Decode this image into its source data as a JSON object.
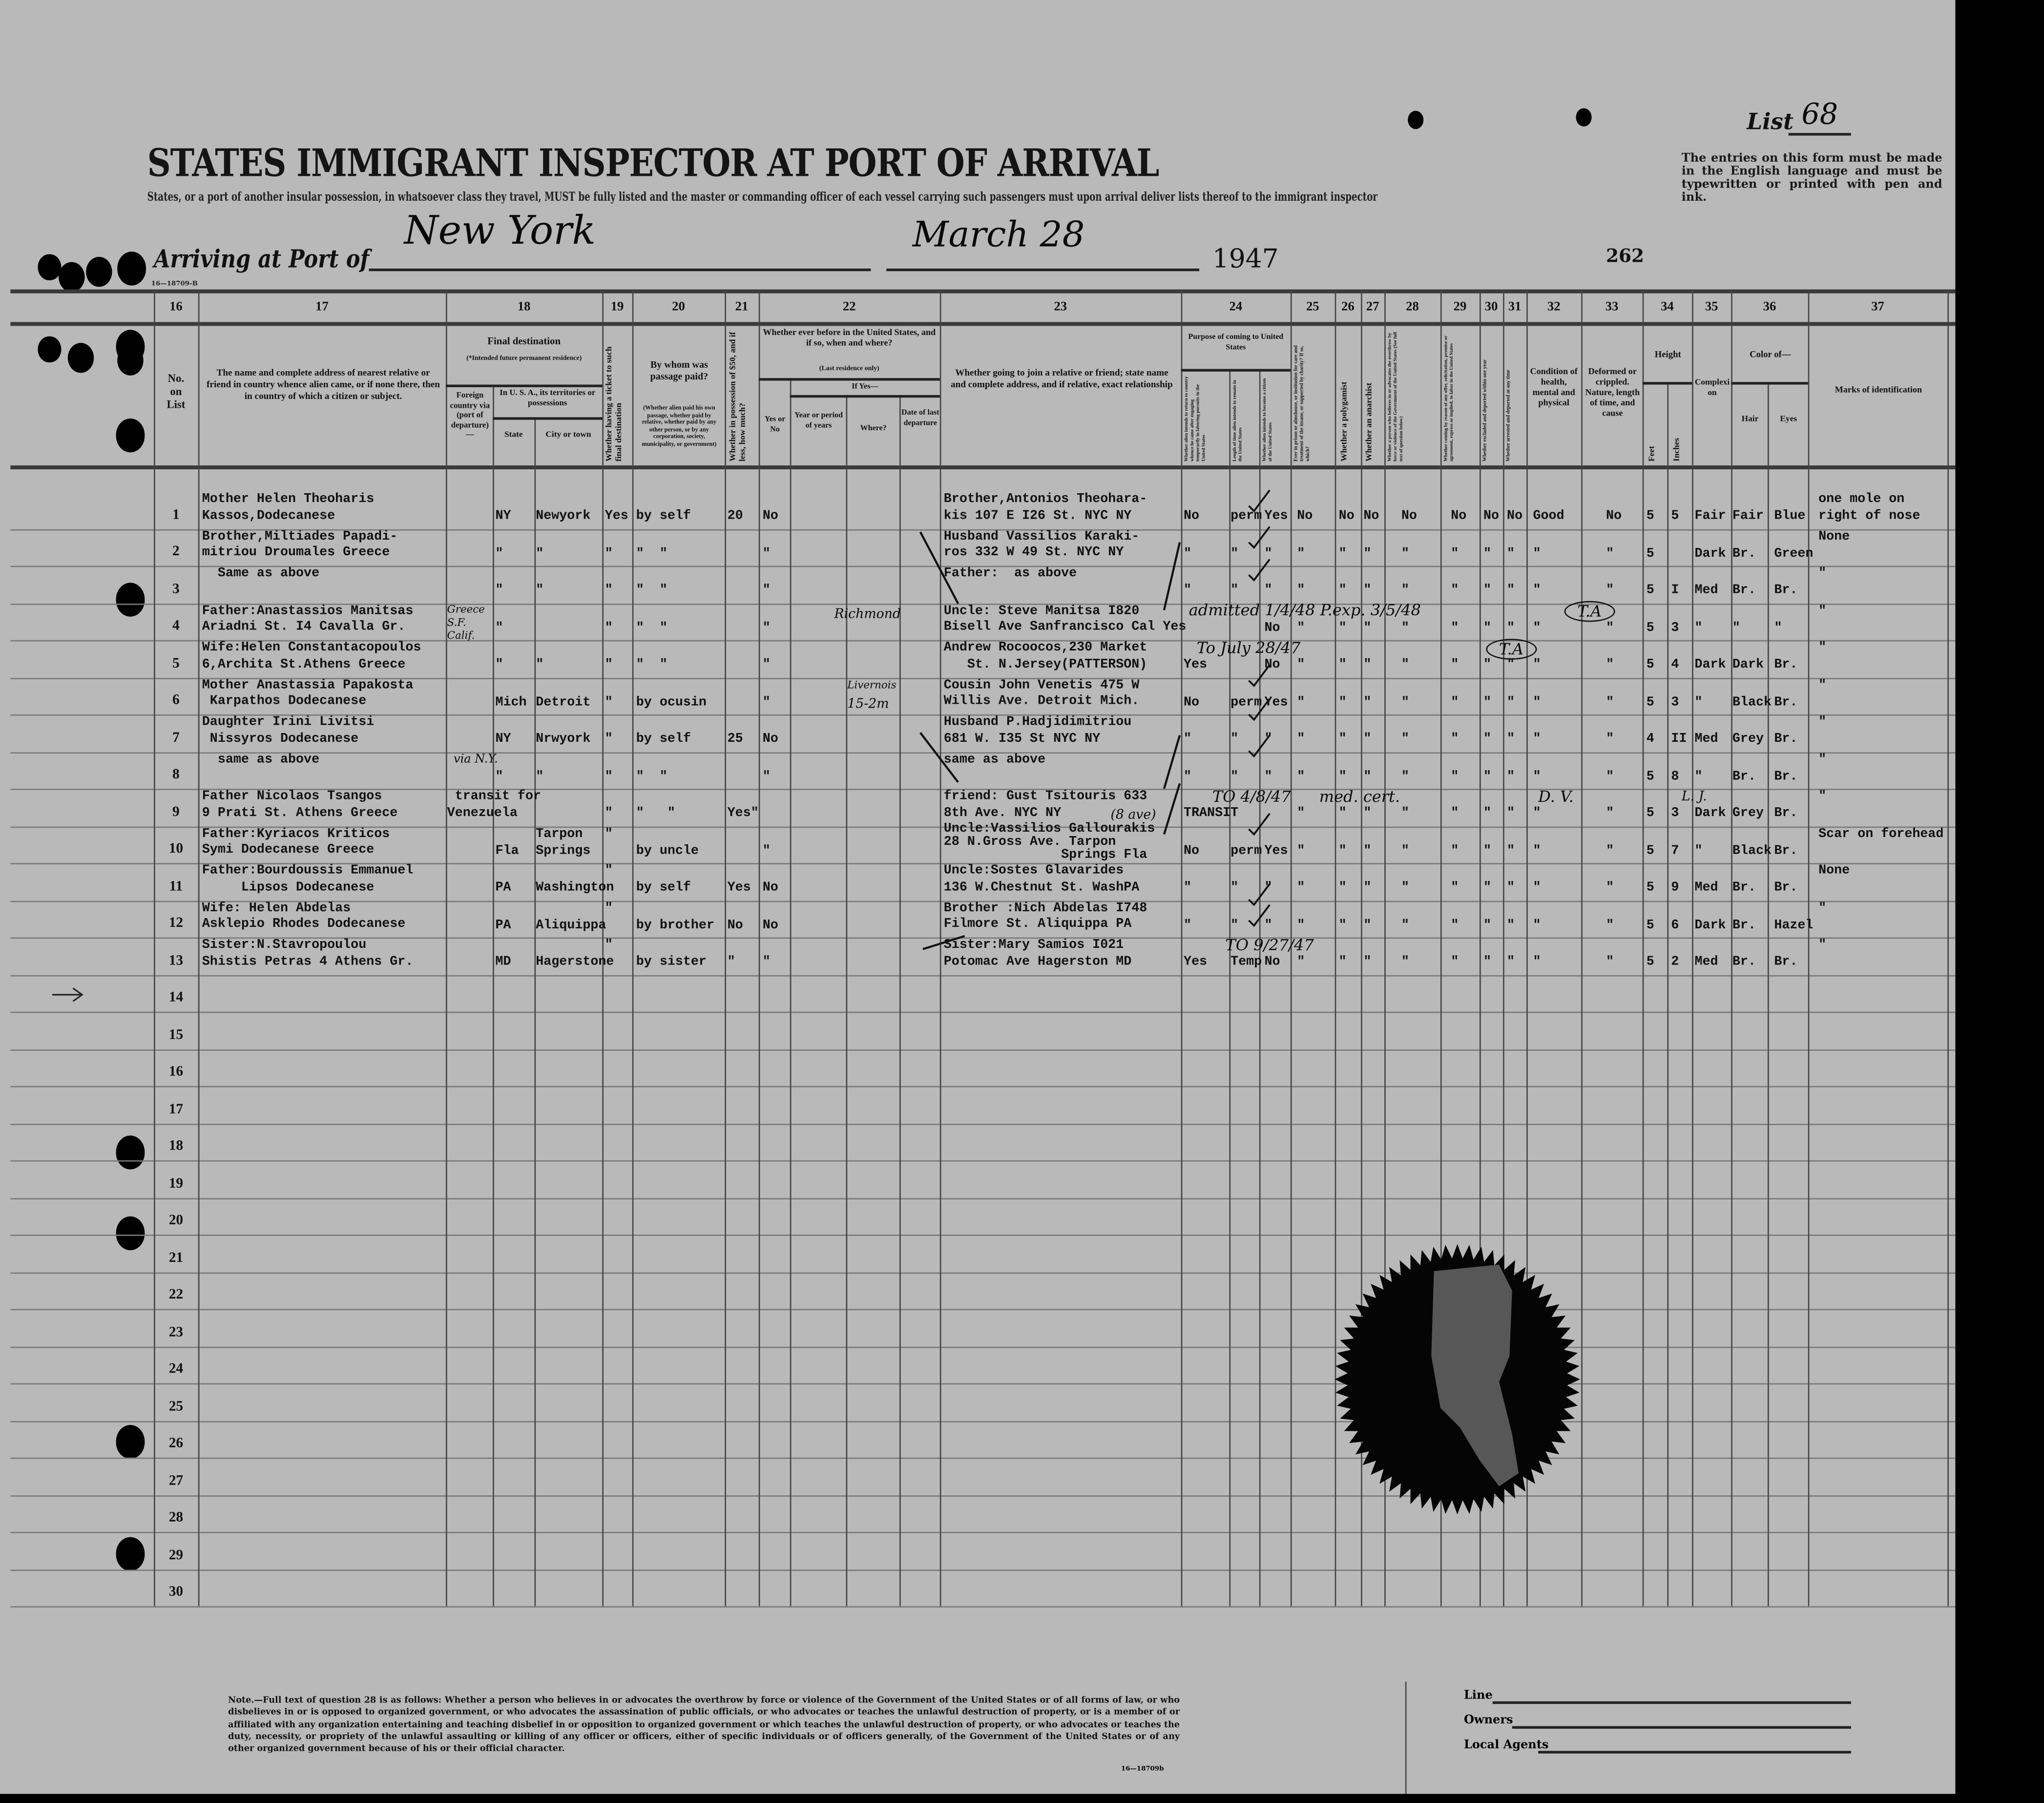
{
  "header": {
    "form_code": "16—18709-B",
    "list_label": "List",
    "list_number": "68",
    "title": "STATES IMMIGRANT INSPECTOR AT PORT OF ARRIVAL",
    "subtitle": "States, or a port of another insular possession, in whatsoever class they travel, MUST be fully listed and the master or commanding officer of each vessel carrying such passengers must upon arrival deliver lists thereof to the immigrant inspector",
    "notice": "The entries on this form must be made in the English language and must be typewritten or printed with pen and ink.",
    "arriving_label": "Arriving at Port of",
    "port": "New York",
    "date": "March 28",
    "year": "1947",
    "sheet_number": "262"
  },
  "columns": {
    "numbers": [
      "16",
      "17",
      "18",
      "19",
      "20",
      "21",
      "22",
      "23",
      "24",
      "25",
      "26",
      "27",
      "28",
      "29",
      "30",
      "31",
      "32",
      "33",
      "34",
      "35",
      "36",
      "37"
    ],
    "no_on_list": "No.\non\nList",
    "relative": "The name and complete address of nearest relative or friend in country whence alien came, or if none there, then in country of which a citizen or subject.",
    "final_destination": "Final destination",
    "final_destination_note": "(*Intended future permanent residence)",
    "foreign_country": "Foreign country via (port of departure)—",
    "in_usa": "In U. S. A., its territories or possessions",
    "state": "State",
    "city": "City or town",
    "ticket": "Whether having a ticket to such final destination",
    "paid_by": "By whom was passage paid?",
    "paid_by_note": "(Whether alien paid his own passage, whether paid by relative, whether paid by any other person, or by any corporation, society, municipality, or government)",
    "money": "Whether in possession of $50, and if less, how much?",
    "before": "Whether ever before in the United States, and if so, when and where?",
    "before_note": "(Last residence only)",
    "if_yes": "If Yes—",
    "yes_no": "Yes or No",
    "year_period": "Year or period of years",
    "where": "Where?",
    "date_departure": "Date of last departure",
    "join": "Whether going to join a relative or friend; state name and complete address, and if relative, exact relationship",
    "purpose": "Purpose of coming to United States",
    "purpose_a": "Whether alien intends to return to country whence he came after engaging temporarily in laboring pursuits in the United States",
    "purpose_b": "Length of time alien intends to remain in the United States",
    "purpose_c": "Whether alien intends to become a citizen of the United States",
    "c25": "Ever in prison or almshouse, or institution for care and treatment of the insane, or supported by charity? If so, which?",
    "c26": "Whether a polygamist",
    "c27": "Whether an anarchist",
    "c28": "Whether a person who believes in or advocates the overthrow by force or violence of the Government of the United States (See full text of question below)",
    "c29": "Whether coming by reason of any offer, solicitation, promise or agreement, express or implied, to labor in the United States",
    "c30": "Whether excluded and deported within one year",
    "c31": "Whether arrested and deported at any time",
    "c32": "Condition of health, mental and physical",
    "c33": "Deformed or crippled. Nature, length of time, and cause",
    "height": "Height",
    "feet": "Feet",
    "inches": "Inches",
    "complexion": "Complexion",
    "color_of": "Color of—",
    "hair": "Hair",
    "eyes": "Eyes",
    "marks": "Marks of identification"
  },
  "rows": [
    {
      "num": "1",
      "rel": "Mother Helen Theoharis\nKassos,Dodecanese",
      "foreign": "",
      "state": "NY",
      "city": "Newyork",
      "ticket": "Yes",
      "paid": "by self",
      "money": "20",
      "before": "No",
      "join": "Brother,Antonios Theohara-\nkis 107 E I26 St. NYC NY",
      "p_a": "No",
      "p_b": "perm",
      "p_c": "Yes",
      "c25": "No",
      "c26": "No",
      "c27": "No",
      "c28": "No",
      "c29": "No",
      "c30": "No",
      "c31": "No",
      "c32": "Good",
      "c33": "No",
      "feet": "5",
      "inches": "5",
      "complexion": "Fair",
      "hair": "Fair",
      "eyes": "Blue",
      "marks": "one mole on\nright of nose"
    },
    {
      "num": "2",
      "rel": "Brother,Miltiades Papadi-\nmitriou Droumales Greece",
      "foreign": "",
      "state": "\"",
      "city": "\"",
      "ticket": "\"",
      "paid": "\"  \"",
      "money": "",
      "before": "\"",
      "join": "Husband Vassilios Karaki-\nros 332 W 49 St. NYC NY",
      "p_a": "\"",
      "p_b": "\"",
      "p_c": "\"",
      "c25": "\"",
      "c26": "\"",
      "c27": "\"",
      "c28": "\"",
      "c29": "\"",
      "c30": "\"",
      "c31": "\"",
      "c32": "\"",
      "c33": "\"",
      "feet": "5",
      "inches": "",
      "complexion": "Dark",
      "hair": "Br.",
      "eyes": "Green",
      "marks": "None"
    },
    {
      "num": "3",
      "rel": "  Same as above",
      "foreign": "",
      "state": "\"",
      "city": "\"",
      "ticket": "\"",
      "paid": "\"  \"",
      "money": "",
      "before": "\"",
      "join": "Father:  as above",
      "p_a": "\"",
      "p_b": "\"",
      "p_c": "\"",
      "c25": "\"",
      "c26": "\"",
      "c27": "\"",
      "c28": "\"",
      "c29": "\"",
      "c30": "\"",
      "c31": "\"",
      "c32": "\"",
      "c33": "\"",
      "feet": "5",
      "inches": "I",
      "complexion": "Med",
      "hair": "Br.",
      "eyes": "Br.",
      "marks": "\""
    },
    {
      "num": "4",
      "rel": "Father:Anastassios Manitsas\nAriadni St. I4 Cavalla Gr.",
      "foreign": "",
      "state": "\"",
      "city": "",
      "ticket": "\"",
      "paid": "\"  \"",
      "money": "",
      "before": "\"",
      "join": "Uncle: Steve Manitsa I820\nBisell Ave Sanfrancisco Cal Yes",
      "p_a": "",
      "p_b": "",
      "p_c": "No",
      "c25": "\"",
      "c26": "\"",
      "c27": "\"",
      "c28": "\"",
      "c29": "\"",
      "c30": "\"",
      "c31": "\"",
      "c32": "\"",
      "c33": "\"",
      "feet": "5",
      "inches": "3",
      "complexion": "\"",
      "hair": "\"",
      "eyes": "\"",
      "marks": "\""
    },
    {
      "num": "5",
      "rel": "Wife:Helen Constantacopoulos\n6,Archita St.Athens Greece",
      "foreign": "",
      "state": "\"",
      "city": "\"",
      "ticket": "\"",
      "paid": "\"  \"",
      "money": "",
      "before": "\"",
      "join": "Andrew Rocoocos,230 Market\n   St. N.Jersey(PATTERSON)",
      "p_a": "Yes",
      "p_b": "",
      "p_c": "No",
      "c25": "\"",
      "c26": "\"",
      "c27": "\"",
      "c28": "\"",
      "c29": "\"",
      "c30": "\"",
      "c31": "\"",
      "c32": "\"",
      "c33": "\"",
      "feet": "5",
      "inches": "4",
      "complexion": "Dark",
      "hair": "Dark",
      "eyes": "Br.",
      "marks": "\""
    },
    {
      "num": "6",
      "rel": "Mother Anastassia Papakosta\n Karpathos Dodecanese",
      "foreign": "",
      "state": "Mich",
      "city": "Detroit",
      "ticket": "\"",
      "paid": "by ocusin",
      "money": "",
      "before": "\"",
      "join": "Cousin John Venetis 475 W\nWillis Ave. Detroit Mich.",
      "p_a": "No",
      "p_b": "perm",
      "p_c": "Yes",
      "c25": "\"",
      "c26": "\"",
      "c27": "\"",
      "c28": "\"",
      "c29": "\"",
      "c30": "\"",
      "c31": "\"",
      "c32": "\"",
      "c33": "\"",
      "feet": "5",
      "inches": "3",
      "complexion": "\"",
      "hair": "Black",
      "eyes": "Br.",
      "marks": "\""
    },
    {
      "num": "7",
      "rel": "Daughter Irini Livitsi\n Nissyros Dodecanese",
      "foreign": "",
      "state": "NY",
      "city": "Nrwyork",
      "ticket": "\"",
      "paid": "by self",
      "money": "25",
      "before": "No",
      "join": "Husband P.Hadjidimitriou\n681 W. I35 St NYC NY",
      "p_a": "\"",
      "p_b": "\"",
      "p_c": "\"",
      "c25": "\"",
      "c26": "\"",
      "c27": "\"",
      "c28": "\"",
      "c29": "\"",
      "c30": "\"",
      "c31": "\"",
      "c32": "\"",
      "c33": "\"",
      "feet": "4",
      "inches": "II",
      "complexion": "Med",
      "hair": "Grey",
      "eyes": "Br.",
      "marks": "\""
    },
    {
      "num": "8",
      "rel": "  same as above",
      "foreign": "",
      "state": "\"",
      "city": "\"",
      "ticket": "\"",
      "paid": "\"  \"",
      "money": "",
      "before": "\"",
      "join": "same as above",
      "p_a": "\"",
      "p_b": "\"",
      "p_c": "\"",
      "c25": "\"",
      "c26": "\"",
      "c27": "\"",
      "c28": "\"",
      "c29": "\"",
      "c30": "\"",
      "c31": "\"",
      "c32": "\"",
      "c33": "\"",
      "feet": "5",
      "inches": "8",
      "complexion": "\"",
      "hair": "Br.",
      "eyes": "Br.",
      "marks": "\""
    },
    {
      "num": "9",
      "rel": "Father Nicolaos Tsangos\n9 Prati St. Athens Greece",
      "foreign": " transit for\nVenezuela",
      "state": "",
      "city": "",
      "ticket": "\"",
      "paid": "\"   \"",
      "money": "Yes\"",
      "before": "",
      "join": "friend: Gust Tsitouris 633\n8th Ave. NYC NY",
      "p_a": "TRANSIT",
      "p_b": "",
      "p_c": "",
      "c25": "\"",
      "c26": "\"",
      "c27": "\"",
      "c28": "\"",
      "c29": "\"",
      "c30": "\"",
      "c31": "\"",
      "c32": "\"",
      "c33": "\"",
      "feet": "5",
      "inches": "3",
      "complexion": "Dark",
      "hair": "Grey",
      "eyes": "Br.",
      "marks": "\""
    },
    {
      "num": "10",
      "rel": "Father:Kyriacos Kriticos\nSymi Dodecanese Greece",
      "foreign": "",
      "state": "Fla",
      "city": "Tarpon\nSprings",
      "ticket": "\"",
      "paid": "by uncle",
      "money": "",
      "before": "\"",
      "join": "Uncle:Vassilios Gallourakis\n28 N.Gross Ave. Tarpon\n               Springs Fla",
      "p_a": "No",
      "p_b": "perm",
      "p_c": "Yes",
      "c25": "\"",
      "c26": "\"",
      "c27": "\"",
      "c28": "\"",
      "c29": "\"",
      "c30": "\"",
      "c31": "\"",
      "c32": "\"",
      "c33": "\"",
      "feet": "5",
      "inches": "7",
      "complexion": "\"",
      "hair": "Black",
      "eyes": "Br.",
      "marks": "Scar on forehead"
    },
    {
      "num": "11",
      "rel": "Father:Bourdoussis Emmanuel\n     Lipsos Dodecanese",
      "foreign": "",
      "state": "PA",
      "city": "Washington",
      "ticket": "\"",
      "paid": "by self",
      "money": "Yes",
      "before": "No",
      "join": "Uncle:Sostes Glavarides\n136 W.Chestnut St. WashPA",
      "p_a": "\"",
      "p_b": "\"",
      "p_c": "\"",
      "c25": "\"",
      "c26": "\"",
      "c27": "\"",
      "c28": "\"",
      "c29": "\"",
      "c30": "\"",
      "c31": "\"",
      "c32": "\"",
      "c33": "\"",
      "feet": "5",
      "inches": "9",
      "complexion": "Med",
      "hair": "Br.",
      "eyes": "Br.",
      "marks": "None"
    },
    {
      "num": "12",
      "rel": "Wife: Helen Abdelas\nAsklepio Rhodes Dodecanese",
      "foreign": "",
      "state": "PA",
      "city": "Aliquippa",
      "ticket": "\"",
      "paid": "by brother",
      "money": "No",
      "before": "No",
      "join": "Brother :Nich Abdelas I748\nFilmore St. Aliquippa PA",
      "p_a": "\"",
      "p_b": "\"",
      "p_c": "\"",
      "c25": "\"",
      "c26": "\"",
      "c27": "\"",
      "c28": "\"",
      "c29": "\"",
      "c30": "\"",
      "c31": "\"",
      "c32": "\"",
      "c33": "\"",
      "feet": "5",
      "inches": "6",
      "complexion": "Dark",
      "hair": "Br.",
      "eyes": "Hazel",
      "marks": "\""
    },
    {
      "num": "13",
      "rel": "Sister:N.Stavropoulou\nShistis Petras 4 Athens Gr.",
      "foreign": "",
      "state": "MD",
      "city": "Hagerstone",
      "ticket": "\"",
      "paid": "by sister",
      "money": "\"",
      "before": "\"",
      "join": "Sister:Mary Samios I021\nPotomac Ave Hagerston MD",
      "p_a": "Yes",
      "p_b": "Temp",
      "p_c": "No",
      "c25": "\"",
      "c26": "\"",
      "c27": "\"",
      "c28": "\"",
      "c29": "\"",
      "c30": "\"",
      "c31": "\"",
      "c32": "\"",
      "c33": "\"",
      "feet": "5",
      "inches": "2",
      "complexion": "Med",
      "hair": "Br.",
      "eyes": "Br.",
      "marks": "\""
    },
    {
      "num": "14"
    },
    {
      "num": "15"
    },
    {
      "num": "16"
    },
    {
      "num": "17"
    },
    {
      "num": "18"
    },
    {
      "num": "19"
    },
    {
      "num": "20"
    },
    {
      "num": "21"
    },
    {
      "num": "22"
    },
    {
      "num": "23"
    },
    {
      "num": "24"
    },
    {
      "num": "25"
    },
    {
      "num": "26"
    },
    {
      "num": "27"
    },
    {
      "num": "28"
    },
    {
      "num": "29"
    },
    {
      "num": "30"
    }
  ],
  "annotations": [
    {
      "text": "Greece\nS.F. Calif.",
      "row": "4"
    },
    {
      "text": "Richmond",
      "row": "4"
    },
    {
      "text": "admitted 1/4/48  P.exp. 3/5/48",
      "row": "4"
    },
    {
      "text": "T.A",
      "row": "4"
    },
    {
      "text": "To July 28/47",
      "row": "5"
    },
    {
      "text": "T.A",
      "row": "5"
    },
    {
      "text": "15-2m",
      "row": "6"
    },
    {
      "text": "Livernois",
      "row": "6"
    },
    {
      "text": "via N.Y.",
      "row": "9"
    },
    {
      "text": "TO 4/8/47",
      "row": "9"
    },
    {
      "text": "med. cert.",
      "row": "9"
    },
    {
      "text": "D. V.",
      "row": "9"
    },
    {
      "text": "L. J.",
      "row": "9"
    },
    {
      "text": "(8 ave)",
      "row": "9"
    },
    {
      "text": "TO 9/27/47",
      "row": "13"
    }
  ],
  "footer": {
    "note": "Note.—Full text of question 28 is as follows: Whether a person who believes in or advocates the overthrow by force or violence of the Government of the United States or of all forms of law, or who disbelieves in or is opposed to organized government, or who advocates the assassination of public officials, or who advocates or teaches the unlawful destruction of property, or is a member of or affiliated with any organization entertaining and teaching disbelief in or opposition to organized government or which teaches the unlawful destruction of property, or who advocates or teaches the duty, necessity, or propriety of the unlawful assaulting or killing of any officer or officers, either of specific individuals or of officers generally, of the Government of the United States or of any other organized government because of his or their official character.",
    "form_code": "16—18709b",
    "line_label": "Line",
    "owners_label": "Owners",
    "agents_label": "Local Agents"
  },
  "colors": {
    "paper": "#b9b9b9",
    "ink": "#111111",
    "rule": "#555555",
    "background": "#000000"
  }
}
